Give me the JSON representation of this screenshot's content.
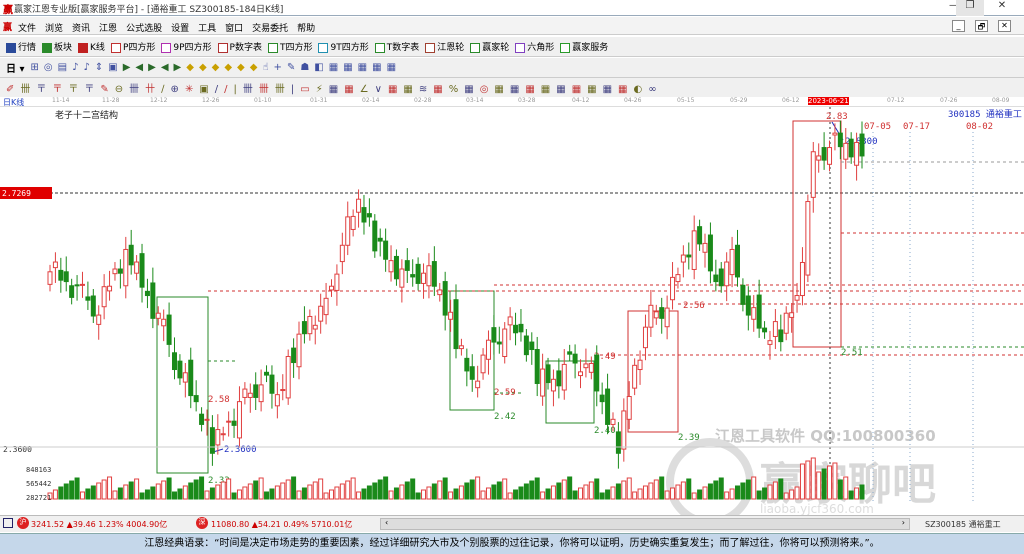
{
  "window": {
    "title": "赢家江恩专业版[赢家服务平台] - [通裕重工  SZ300185-184日K线]",
    "minimize": "—",
    "restore": "❐",
    "close": "✕"
  },
  "menu": [
    "文件",
    "浏览",
    "资讯",
    "江恩",
    "公式选股",
    "设置",
    "工具",
    "窗口",
    "交易委托",
    "帮助"
  ],
  "mdi_buttons": [
    "_",
    "🗗",
    "✕"
  ],
  "toolbar1": [
    "行情",
    "板块",
    "K线",
    "P四方形",
    "9P四方形",
    "P数字表",
    "T四方形",
    "9T四方形",
    "T数字表",
    "江恩轮",
    "赢家轮",
    "六角形",
    "赢家服务"
  ],
  "toolbar1_icons": [
    "PS",
    "P9",
    "PN",
    "TS",
    "T9",
    "TN"
  ],
  "period_selector": "日",
  "chart": {
    "period_label": "日K线",
    "structure_label": "老子十二宫结构",
    "stock_label": "300185 通裕重工",
    "date_ticks": [
      "11-14",
      "11-28",
      "12-12",
      "12-26",
      "01-10",
      "01-31",
      "02-14",
      "02-28",
      "03-14",
      "03-28",
      "04-12",
      "04-26",
      "05-15",
      "05-29",
      "06-12",
      "2023-06-21",
      "07-12",
      "07-26",
      "08-09"
    ],
    "future_dates": [
      "07-05",
      "07-17",
      "08-02"
    ],
    "current_price_tag": "2.7269",
    "low_marker": "2.3600",
    "high_marker": "2.8300",
    "volume_ticks": [
      "848163",
      "565442",
      "282721"
    ],
    "price_levels": [
      {
        "text": "2.58",
        "color": "#d03030"
      },
      {
        "text": "2.33",
        "color": "#2a8a2a"
      },
      {
        "text": "2.59",
        "color": "#d03030"
      },
      {
        "text": "2.42",
        "color": "#2a8a2a"
      },
      {
        "text": "2.49",
        "color": "#d03030"
      },
      {
        "text": "2.40",
        "color": "#2a8a2a"
      },
      {
        "text": "2.56",
        "color": "#d03030"
      },
      {
        "text": "2.39",
        "color": "#2a8a2a"
      },
      {
        "text": "2.83",
        "color": "#d03030"
      },
      {
        "text": "2.51",
        "color": "#2a8a2a"
      }
    ],
    "left_price": "2.3600",
    "closes": [
      2.63,
      2.6,
      2.58,
      2.56,
      2.61,
      2.64,
      2.58,
      2.53,
      2.47,
      2.42,
      2.37,
      2.4,
      2.43,
      2.46,
      2.43,
      2.5,
      2.55,
      2.56,
      2.66,
      2.71,
      2.66,
      2.63,
      2.6,
      2.62,
      2.58,
      2.52,
      2.46,
      2.5,
      2.54,
      2.52,
      2.47,
      2.46,
      2.48,
      2.49,
      2.42,
      2.37,
      2.48,
      2.55,
      2.57,
      2.63,
      2.67,
      2.6,
      2.63,
      2.56,
      2.52,
      2.53,
      2.58,
      2.77,
      2.8,
      2.79,
      2.78
    ],
    "watermark_text": "江恩工具软件  QQ:100800360",
    "watermark_logo": "赢家聊吧",
    "watermark_url": "liaoba.yjcf360.com",
    "up_color": "#e04040",
    "down_color": "#1a8a1a"
  },
  "status": {
    "sh": "3241.52 ▲39.46 1.23% 4004.90亿",
    "sz": "11080.80 ▲54.21 0.49% 5710.01亿",
    "stock": "SZ300185 通裕重工"
  },
  "quote": "江恩经典语录：“时间是决定市场走势的重要因素，经过详细研究大市及个别股票的过往记录，你将可以证明，历史确实重复发生；而了解过往，你将可以预测将来。”。"
}
